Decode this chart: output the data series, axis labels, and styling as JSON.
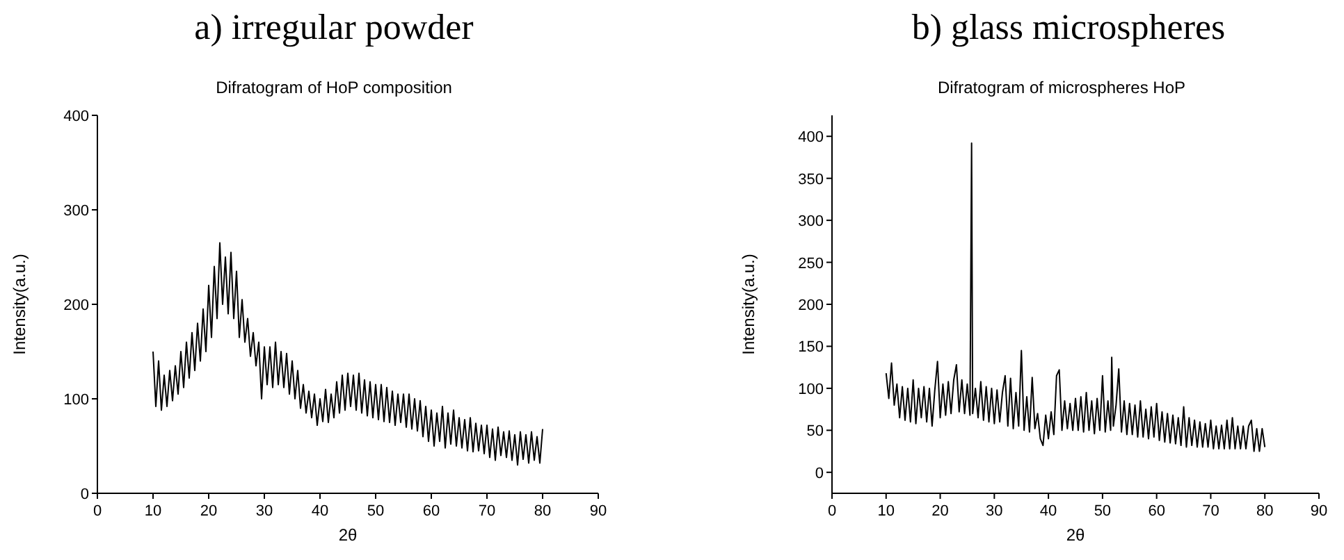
{
  "chart_data": [
    {
      "type": "line",
      "title": "a) irregular powder",
      "subtitle": "Difratogram of HoP composition",
      "xlabel": "2θ",
      "ylabel": "Intensity(a.u.)",
      "xlim": [
        0,
        90
      ],
      "ylim": [
        0,
        400
      ],
      "xticks": [
        0,
        10,
        20,
        30,
        40,
        50,
        60,
        70,
        80,
        90
      ],
      "yticks": [
        0,
        100,
        200,
        300,
        400
      ],
      "grid": false,
      "marker": "none",
      "line_style": "solid",
      "series": [
        {
          "color": "#000000",
          "x": [
            10,
            10.5,
            11,
            11.5,
            12,
            12.5,
            13,
            13.5,
            14,
            14.5,
            15,
            15.5,
            16,
            16.5,
            17,
            17.5,
            18,
            18.5,
            19,
            19.5,
            20,
            20.5,
            21,
            21.5,
            22,
            22.5,
            23,
            23.5,
            24,
            24.5,
            25,
            25.5,
            26,
            26.5,
            27,
            27.5,
            28,
            28.5,
            29,
            29.5,
            30,
            30.5,
            31,
            31.5,
            32,
            32.5,
            33,
            33.5,
            34,
            34.5,
            35,
            35.5,
            36,
            36.5,
            37,
            37.5,
            38,
            38.5,
            39,
            39.5,
            40,
            40.5,
            41,
            41.5,
            42,
            42.5,
            43,
            43.5,
            44,
            44.5,
            45,
            45.5,
            46,
            46.5,
            47,
            47.5,
            48,
            48.5,
            49,
            49.5,
            50,
            50.5,
            51,
            51.5,
            52,
            52.5,
            53,
            53.5,
            54,
            54.5,
            55,
            55.5,
            56,
            56.5,
            57,
            57.5,
            58,
            58.5,
            59,
            59.5,
            60,
            60.5,
            61,
            61.5,
            62,
            62.5,
            63,
            63.5,
            64,
            64.5,
            65,
            65.5,
            66,
            66.5,
            67,
            67.5,
            68,
            68.5,
            69,
            69.5,
            70,
            70.5,
            71,
            71.5,
            72,
            72.5,
            73,
            73.5,
            74,
            74.5,
            75,
            75.5,
            76,
            76.5,
            77,
            77.5,
            78,
            78.5,
            79,
            79.5,
            80
          ],
          "values": [
            150,
            92,
            140,
            88,
            125,
            92,
            130,
            98,
            135,
            105,
            150,
            112,
            160,
            122,
            170,
            130,
            180,
            140,
            195,
            150,
            220,
            165,
            240,
            185,
            265,
            200,
            250,
            190,
            255,
            185,
            235,
            165,
            205,
            160,
            185,
            145,
            170,
            135,
            160,
            100,
            155,
            115,
            155,
            112,
            160,
            115,
            150,
            112,
            148,
            105,
            140,
            100,
            130,
            90,
            115,
            85,
            108,
            80,
            105,
            72,
            100,
            76,
            110,
            75,
            105,
            80,
            118,
            85,
            125,
            88,
            127,
            92,
            125,
            88,
            127,
            85,
            120,
            82,
            118,
            80,
            115,
            78,
            115,
            76,
            112,
            75,
            108,
            72,
            105,
            75,
            105,
            70,
            105,
            68,
            100,
            66,
            98,
            60,
            92,
            55,
            88,
            50,
            85,
            55,
            92,
            48,
            85,
            52,
            88,
            50,
            80,
            48,
            78,
            45,
            80,
            44,
            74,
            45,
            72,
            42,
            72,
            38,
            68,
            35,
            70,
            40,
            65,
            38,
            66,
            35,
            62,
            30,
            65,
            36,
            62,
            32,
            65,
            35,
            60,
            32,
            68
          ]
        }
      ]
    },
    {
      "type": "line",
      "title": "b) glass microspheres",
      "subtitle": "Difratogram of microspheres HoP",
      "xlabel": "2θ",
      "ylabel": "Intensity(a.u.)",
      "xlim": [
        0,
        90
      ],
      "ylim": [
        -25,
        425
      ],
      "xticks": [
        0,
        10,
        20,
        30,
        40,
        50,
        60,
        70,
        80,
        90
      ],
      "yticks": [
        0,
        50,
        100,
        150,
        200,
        250,
        300,
        350,
        400
      ],
      "grid": false,
      "marker": "none",
      "line_style": "solid",
      "series": [
        {
          "color": "#000000",
          "x": [
            10,
            10.5,
            11,
            11.5,
            12,
            12.5,
            13,
            13.5,
            14,
            14.5,
            15,
            15.5,
            16,
            16.5,
            17,
            17.5,
            18,
            18.5,
            19,
            19.5,
            20,
            20.5,
            21,
            21.5,
            22,
            22.5,
            23,
            23.5,
            24,
            24.5,
            25,
            25.5,
            25.8,
            26,
            26.5,
            27,
            27.5,
            28,
            28.5,
            29,
            29.5,
            30,
            30.5,
            31,
            31.5,
            32,
            32.5,
            33,
            33.5,
            34,
            34.5,
            35,
            35.5,
            36,
            36.5,
            37,
            37.5,
            38,
            38.5,
            39,
            39.5,
            40,
            40.5,
            41,
            41.5,
            42,
            42.5,
            43,
            43.5,
            44,
            44.5,
            45,
            45.5,
            46,
            46.5,
            47,
            47.5,
            48,
            48.5,
            49,
            49.5,
            50,
            50.5,
            51,
            51.5,
            51.7,
            52,
            52.5,
            53,
            53.5,
            54,
            54.5,
            55,
            55.5,
            56,
            56.5,
            57,
            57.5,
            58,
            58.5,
            59,
            59.5,
            60,
            60.5,
            61,
            61.5,
            62,
            62.5,
            63,
            63.5,
            64,
            64.5,
            65,
            65.5,
            66,
            66.5,
            67,
            67.5,
            68,
            68.5,
            69,
            69.5,
            70,
            70.5,
            71,
            71.5,
            72,
            72.5,
            73,
            73.5,
            74,
            74.5,
            75,
            75.5,
            76,
            76.5,
            77,
            77.5,
            78,
            78.5,
            79,
            79.5,
            80
          ],
          "values": [
            118,
            88,
            130,
            80,
            105,
            65,
            102,
            62,
            100,
            60,
            110,
            58,
            100,
            65,
            102,
            60,
            100,
            55,
            98,
            132,
            65,
            105,
            68,
            108,
            70,
            110,
            128,
            72,
            110,
            70,
            105,
            68,
            392,
            70,
            100,
            65,
            108,
            62,
            102,
            60,
            100,
            58,
            98,
            60,
            95,
            115,
            55,
            112,
            52,
            95,
            55,
            145,
            50,
            90,
            48,
            113,
            52,
            70,
            40,
            32,
            68,
            40,
            72,
            45,
            115,
            122,
            50,
            85,
            52,
            82,
            50,
            88,
            50,
            90,
            48,
            95,
            50,
            85,
            46,
            88,
            50,
            115,
            48,
            85,
            50,
            137,
            55,
            80,
            123,
            48,
            85,
            45,
            82,
            45,
            80,
            42,
            85,
            42,
            75,
            40,
            78,
            42,
            82,
            38,
            72,
            36,
            70,
            35,
            68,
            34,
            65,
            32,
            78,
            30,
            65,
            32,
            62,
            30,
            60,
            30,
            58,
            30,
            62,
            28,
            55,
            28,
            56,
            28,
            62,
            28,
            65,
            28,
            55,
            28,
            55,
            28,
            55,
            62,
            25,
            52,
            25,
            52,
            30
          ]
        }
      ]
    }
  ]
}
